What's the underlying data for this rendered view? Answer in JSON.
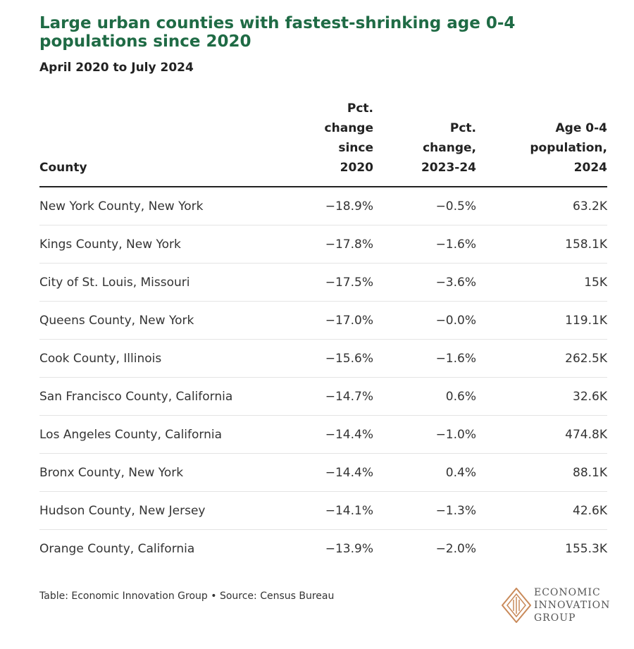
{
  "chart_data": {
    "type": "table",
    "title": "Large urban counties with fastest-shrinking age 0-4 populations since 2020",
    "subtitle": "April 2020 to July 2024",
    "columns": [
      {
        "label_lines": [
          "County"
        ]
      },
      {
        "label_lines": [
          "Pct.",
          "change",
          "since",
          "2020"
        ]
      },
      {
        "label_lines": [
          "Pct.",
          "change,",
          "2023-24"
        ]
      },
      {
        "label_lines": [
          "Age 0-4",
          "population,",
          "2024"
        ]
      }
    ],
    "rows": [
      {
        "county": "New York County, New York",
        "pct_since_2020": "−18.9%",
        "pct_2023_24": "−0.5%",
        "pop_2024": "63.2K"
      },
      {
        "county": "Kings County, New York",
        "pct_since_2020": "−17.8%",
        "pct_2023_24": "−1.6%",
        "pop_2024": "158.1K"
      },
      {
        "county": "City of St. Louis, Missouri",
        "pct_since_2020": "−17.5%",
        "pct_2023_24": "−3.6%",
        "pop_2024": "15K"
      },
      {
        "county": "Queens County, New York",
        "pct_since_2020": "−17.0%",
        "pct_2023_24": "−0.0%",
        "pop_2024": "119.1K"
      },
      {
        "county": "Cook County, Illinois",
        "pct_since_2020": "−15.6%",
        "pct_2023_24": "−1.6%",
        "pop_2024": "262.5K"
      },
      {
        "county": "San Francisco County, California",
        "pct_since_2020": "−14.7%",
        "pct_2023_24": "0.6%",
        "pop_2024": "32.6K"
      },
      {
        "county": "Los Angeles County, California",
        "pct_since_2020": "−14.4%",
        "pct_2023_24": "−1.0%",
        "pop_2024": "474.8K"
      },
      {
        "county": "Bronx County, New York",
        "pct_since_2020": "−14.4%",
        "pct_2023_24": "0.4%",
        "pop_2024": "88.1K"
      },
      {
        "county": "Hudson County, New Jersey",
        "pct_since_2020": "−14.1%",
        "pct_2023_24": "−1.3%",
        "pop_2024": "42.6K"
      },
      {
        "county": "Orange County, California",
        "pct_since_2020": "−13.9%",
        "pct_2023_24": "−2.0%",
        "pop_2024": "155.3K"
      }
    ]
  },
  "footer": {
    "source": "Table: Economic Innovation Group • Source: Census Bureau"
  },
  "logo": {
    "lines": [
      "ECONOMIC",
      "INNOVATION",
      "GROUP"
    ],
    "mark_color": "#c98a5a",
    "icon": "diamond-logo-icon"
  },
  "colors": {
    "title": "#1f6b45"
  }
}
